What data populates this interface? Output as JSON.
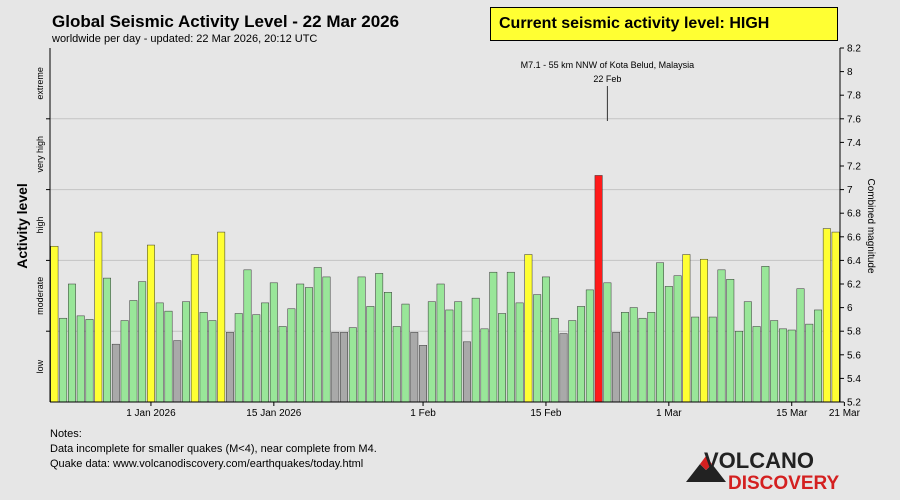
{
  "header": {
    "title": "Global Seismic Activity Level - 22 Mar 2026",
    "subtitle": "worldwide per day - updated: 22 Mar 2026, 20:12 UTC",
    "current_level": "Current seismic activity level: HIGH"
  },
  "notes": {
    "heading": "Notes:",
    "line1": "Data incomplete for smaller quakes (M<4), near complete from M4.",
    "line2": "Quake data: www.volcanodiscovery.com/earthquakes/today.html"
  },
  "logo": {
    "line1": "VOLCANO",
    "line2": "DISCOVERY"
  },
  "colors": {
    "background": "#e6e6e6",
    "low": "#a9a9a9",
    "moderate": "#99e699",
    "high": "#ffff33",
    "extreme": "#ff1a1a",
    "logo_red": "#d42020",
    "logo_dark": "#222222"
  },
  "chart_data": {
    "type": "bar",
    "title": "Global Seismic Activity Level - 22 Mar 2026",
    "ylabel_left": "Activity level",
    "ylabel_right": "Combined magnitude",
    "ylim": [
      5.2,
      8.2
    ],
    "right_ticks": [
      5.2,
      5.4,
      5.6,
      5.8,
      6,
      6.2,
      6.4,
      6.6,
      6.8,
      7,
      7.2,
      7.4,
      7.6,
      7.8,
      8,
      8.2
    ],
    "level_labels": [
      {
        "label": "low",
        "from": 5.2,
        "to": 5.8
      },
      {
        "label": "moderate",
        "from": 5.8,
        "to": 6.4
      },
      {
        "label": "high",
        "from": 6.4,
        "to": 7.0
      },
      {
        "label": "very high",
        "from": 7.0,
        "to": 7.6
      },
      {
        "label": "extreme",
        "from": 7.6,
        "to": 8.2
      }
    ],
    "grid_lines": [
      5.8,
      6.4,
      7.0,
      7.6
    ],
    "x_ticks": [
      {
        "label": "1 Jan 2026",
        "index": 11
      },
      {
        "label": "15 Jan 2026",
        "index": 25
      },
      {
        "label": "1 Feb",
        "index": 42
      },
      {
        "label": "15 Feb",
        "index": 56
      },
      {
        "label": "1 Mar",
        "index": 70
      },
      {
        "label": "15 Mar",
        "index": 84
      },
      {
        "label": "21 Mar",
        "index": 90
      }
    ],
    "annotation": {
      "text": "M7.1 - 55 km NNW of Kota Belud, Malaysia",
      "date": "22 Feb",
      "index": 63
    },
    "values": [
      6.52,
      5.91,
      6.2,
      5.93,
      5.9,
      6.64,
      6.25,
      5.69,
      5.89,
      6.06,
      6.22,
      6.53,
      6.04,
      5.97,
      5.72,
      6.05,
      6.45,
      5.96,
      5.89,
      6.64,
      5.79,
      5.95,
      6.32,
      5.94,
      6.04,
      6.21,
      5.84,
      5.99,
      6.2,
      6.17,
      6.34,
      6.26,
      5.79,
      5.79,
      5.83,
      6.26,
      6.01,
      6.29,
      6.13,
      5.84,
      6.03,
      5.79,
      5.68,
      6.05,
      6.2,
      5.98,
      6.05,
      5.71,
      6.08,
      5.82,
      6.3,
      5.95,
      6.3,
      6.04,
      6.45,
      6.11,
      6.26,
      5.91,
      5.78,
      5.89,
      6.01,
      6.15,
      7.12,
      6.21,
      5.79,
      5.96,
      6.0,
      5.91,
      5.96,
      6.38,
      6.18,
      6.27,
      6.45,
      5.92,
      6.41,
      5.92,
      6.32,
      6.24,
      5.8,
      6.05,
      5.84,
      6.35,
      5.89,
      5.82,
      5.81,
      6.16,
      5.86,
      5.98,
      6.67,
      6.64
    ],
    "bar_levels": [
      "high",
      "moderate",
      "moderate",
      "moderate",
      "moderate",
      "high",
      "moderate",
      "low",
      "moderate",
      "moderate",
      "moderate",
      "high",
      "moderate",
      "moderate",
      "low",
      "moderate",
      "high",
      "moderate",
      "moderate",
      "high",
      "low",
      "moderate",
      "moderate",
      "moderate",
      "moderate",
      "moderate",
      "moderate",
      "moderate",
      "moderate",
      "moderate",
      "moderate",
      "moderate",
      "low",
      "low",
      "moderate",
      "moderate",
      "moderate",
      "moderate",
      "moderate",
      "moderate",
      "moderate",
      "low",
      "low",
      "moderate",
      "moderate",
      "moderate",
      "moderate",
      "low",
      "moderate",
      "moderate",
      "moderate",
      "moderate",
      "moderate",
      "moderate",
      "high",
      "moderate",
      "moderate",
      "moderate",
      "low",
      "moderate",
      "moderate",
      "moderate",
      "extreme",
      "moderate",
      "low",
      "moderate",
      "moderate",
      "moderate",
      "moderate",
      "moderate",
      "moderate",
      "moderate",
      "high",
      "moderate",
      "high",
      "moderate",
      "moderate",
      "moderate",
      "moderate",
      "moderate",
      "moderate",
      "moderate",
      "moderate",
      "moderate",
      "moderate",
      "moderate",
      "moderate",
      "moderate",
      "high",
      "high"
    ]
  }
}
